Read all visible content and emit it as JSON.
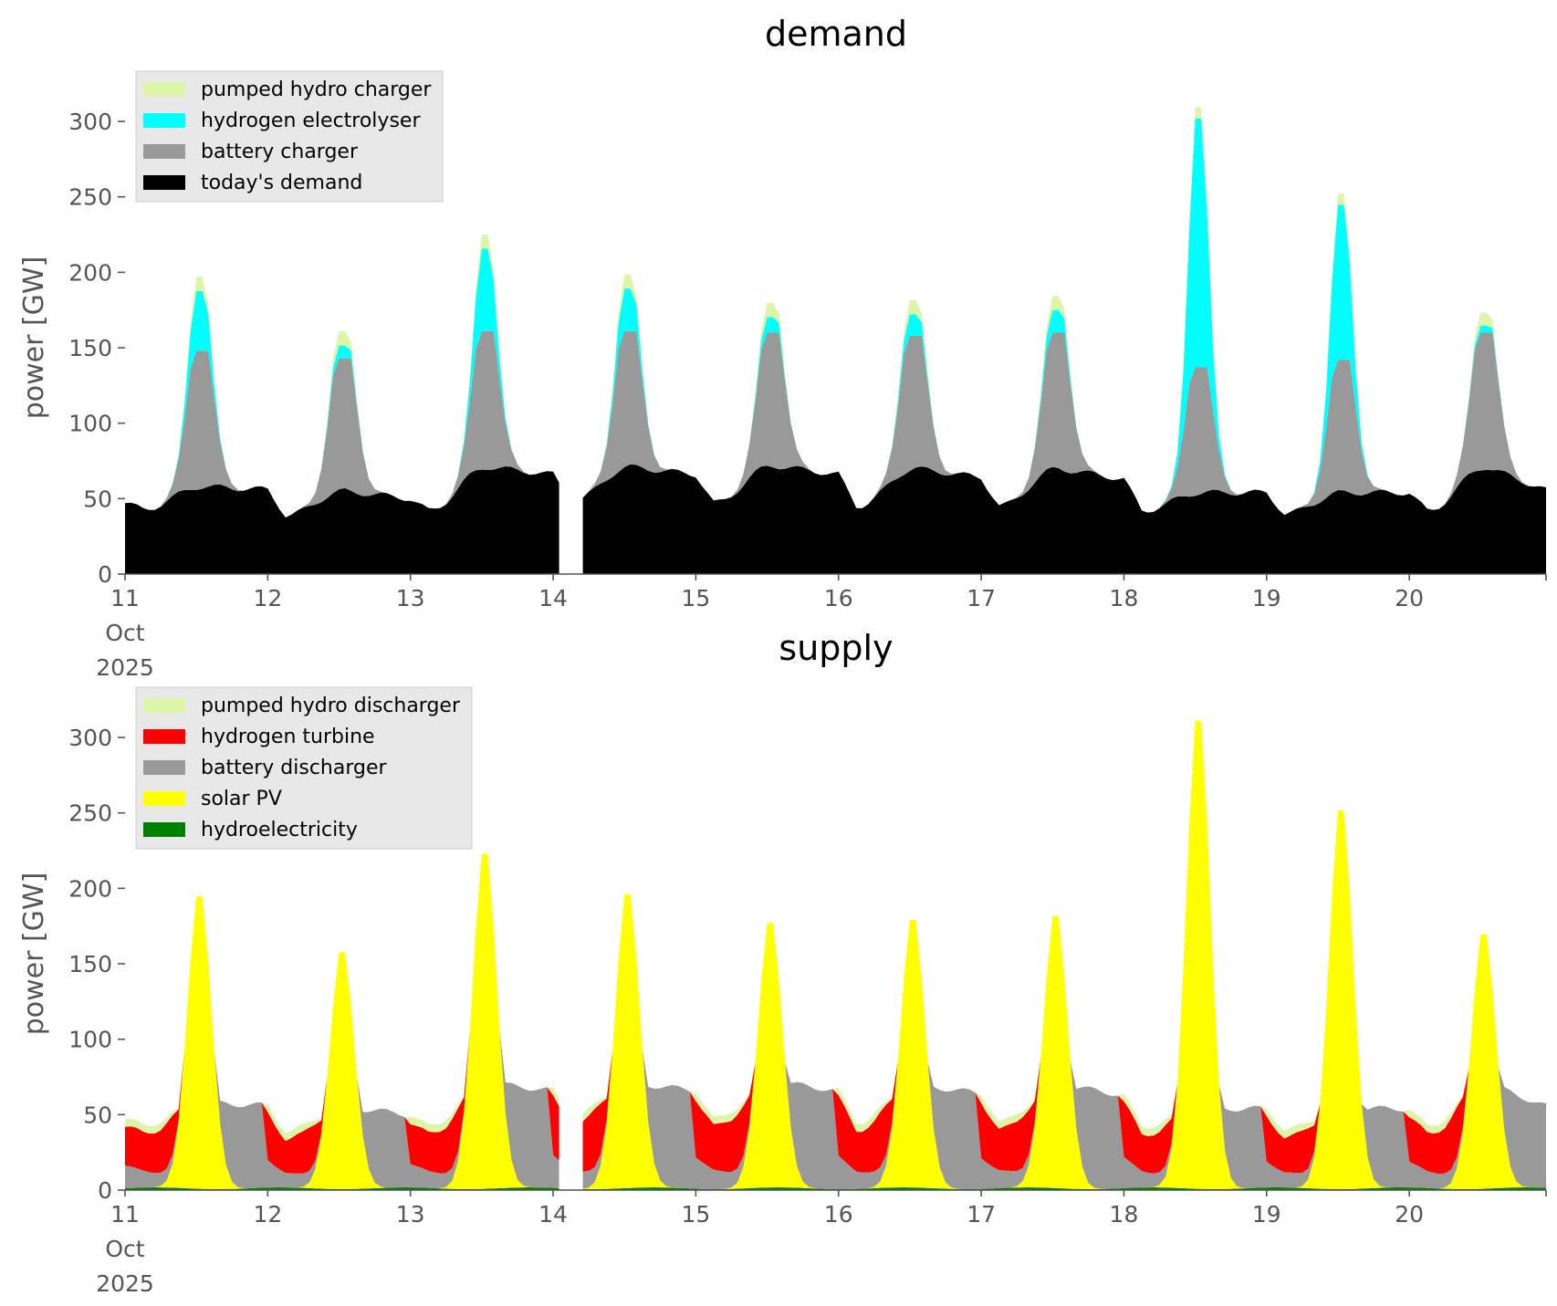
{
  "chart_data": [
    {
      "type": "area",
      "title": "demand",
      "xlabel": "",
      "ylabel": "power [GW]",
      "ylim": [
        0,
        320
      ],
      "xlim": [
        0,
        239
      ],
      "y_ticks": [
        0,
        50,
        100,
        150,
        200,
        250,
        300
      ],
      "x_ticks": [
        {
          "x": 0,
          "label": [
            "11",
            "Oct",
            "2025"
          ]
        },
        {
          "x": 24,
          "label": [
            "12"
          ]
        },
        {
          "x": 48,
          "label": [
            "13"
          ]
        },
        {
          "x": 72,
          "label": [
            "14"
          ]
        },
        {
          "x": 96,
          "label": [
            "15"
          ]
        },
        {
          "x": 120,
          "label": [
            "16"
          ]
        },
        {
          "x": 144,
          "label": [
            "17"
          ]
        },
        {
          "x": 168,
          "label": [
            "18"
          ]
        },
        {
          "x": 192,
          "label": [
            "19"
          ]
        },
        {
          "x": 216,
          "label": [
            "20"
          ]
        }
      ],
      "x_unit": "hours from 11 Oct 2025 00:00",
      "legend_position": "upper left",
      "stack_order": [
        "today's demand",
        "battery charger",
        "hydrogen electrolyser",
        "pumped hydro charger"
      ],
      "series": [
        {
          "name": "pumped hydro charger",
          "color": "#dcf5a8"
        },
        {
          "name": "hydrogen electrolyser",
          "color": "#00ffff"
        },
        {
          "name": "battery charger",
          "color": "#999999"
        },
        {
          "name": "today's demand",
          "color": "#000000"
        }
      ],
      "gap": [
        73.5,
        76.5
      ],
      "baseline": {
        "kind": "demand",
        "day_profiles": [
          {
            "day": 0,
            "low": 43,
            "peak": 58,
            "end": 56
          },
          {
            "day": 1,
            "low": 39,
            "peak": 55,
            "end": 50
          },
          {
            "day": 2,
            "low": 42,
            "peak": 71,
            "end": 66
          },
          {
            "day": 3,
            "low": 48,
            "peak": 71,
            "end": 66
          },
          {
            "day": 4,
            "low": 47,
            "peak": 72,
            "end": 66
          },
          {
            "day": 5,
            "low": 45,
            "peak": 70,
            "end": 64
          },
          {
            "day": 6,
            "low": 45,
            "peak": 70,
            "end": 63
          },
          {
            "day": 7,
            "low": 42,
            "peak": 54,
            "end": 54
          },
          {
            "day": 8,
            "low": 40,
            "peak": 54,
            "end": 54
          },
          {
            "day": 9,
            "low": 42,
            "peak": 71,
            "end": 54
          }
        ]
      },
      "daily_peaks": [
        {
          "day": 0,
          "battery_top": 148,
          "electrolyser_top": 190,
          "pumped_top": 200
        },
        {
          "day": 1,
          "battery_top": 143,
          "electrolyser_top": 152,
          "pumped_top": 162
        },
        {
          "day": 2,
          "battery_top": 161,
          "electrolyser_top": 219,
          "pumped_top": 229
        },
        {
          "day": 3,
          "battery_top": 161,
          "electrolyser_top": 191,
          "pumped_top": 201
        },
        {
          "day": 4,
          "battery_top": 160,
          "electrolyser_top": 171,
          "pumped_top": 181
        },
        {
          "day": 5,
          "battery_top": 158,
          "electrolyser_top": 173,
          "pumped_top": 183
        },
        {
          "day": 6,
          "battery_top": 160,
          "electrolyser_top": 176,
          "pumped_top": 186
        },
        {
          "day": 7,
          "battery_top": 137,
          "electrolyser_top": 312,
          "pumped_top": 320
        },
        {
          "day": 8,
          "battery_top": 142,
          "electrolyser_top": 251,
          "pumped_top": 259
        },
        {
          "day": 9,
          "battery_top": 160,
          "electrolyser_top": 165,
          "pumped_top": 174
        }
      ]
    },
    {
      "type": "area",
      "title": "supply",
      "xlabel": "",
      "ylabel": "power [GW]",
      "ylim": [
        0,
        320
      ],
      "xlim": [
        0,
        239
      ],
      "y_ticks": [
        0,
        50,
        100,
        150,
        200,
        250,
        300
      ],
      "x_ticks": [
        {
          "x": 0,
          "label": [
            "11",
            "Oct",
            "2025"
          ]
        },
        {
          "x": 24,
          "label": [
            "12"
          ]
        },
        {
          "x": 48,
          "label": [
            "13"
          ]
        },
        {
          "x": 72,
          "label": [
            "14"
          ]
        },
        {
          "x": 96,
          "label": [
            "15"
          ]
        },
        {
          "x": 120,
          "label": [
            "16"
          ]
        },
        {
          "x": 144,
          "label": [
            "17"
          ]
        },
        {
          "x": 168,
          "label": [
            "18"
          ]
        },
        {
          "x": 192,
          "label": [
            "19"
          ]
        },
        {
          "x": 216,
          "label": [
            "20"
          ]
        }
      ],
      "x_unit": "hours from 11 Oct 2025 00:00",
      "legend_position": "upper left",
      "stack_order": [
        "hydroelectricity",
        "solar PV",
        "battery discharger",
        "hydrogen turbine",
        "pumped hydro discharger"
      ],
      "series": [
        {
          "name": "pumped hydro discharger",
          "color": "#dcf5a8"
        },
        {
          "name": "hydrogen turbine",
          "color": "#ff0000"
        },
        {
          "name": "battery discharger",
          "color": "#999999"
        },
        {
          "name": "solar PV",
          "color": "#ffff00"
        },
        {
          "name": "hydroelectricity",
          "color": "#008000"
        }
      ],
      "gap": [
        73.5,
        76.5
      ],
      "daily_solar_peaks": [
        200,
        162,
        229,
        201,
        181,
        183,
        186,
        320,
        259,
        174
      ],
      "night_stack_tops": [
        {
          "day": 0,
          "top": 46
        },
        {
          "day": 1,
          "top": 41
        },
        {
          "day": 2,
          "top": 50
        },
        {
          "day": 3,
          "top": 50
        },
        {
          "day": 4,
          "top": 49
        },
        {
          "day": 5,
          "top": 50
        },
        {
          "day": 6,
          "top": 48
        },
        {
          "day": 7,
          "top": 48
        },
        {
          "day": 8,
          "top": 42
        },
        {
          "day": 9,
          "top": 45
        }
      ]
    }
  ]
}
